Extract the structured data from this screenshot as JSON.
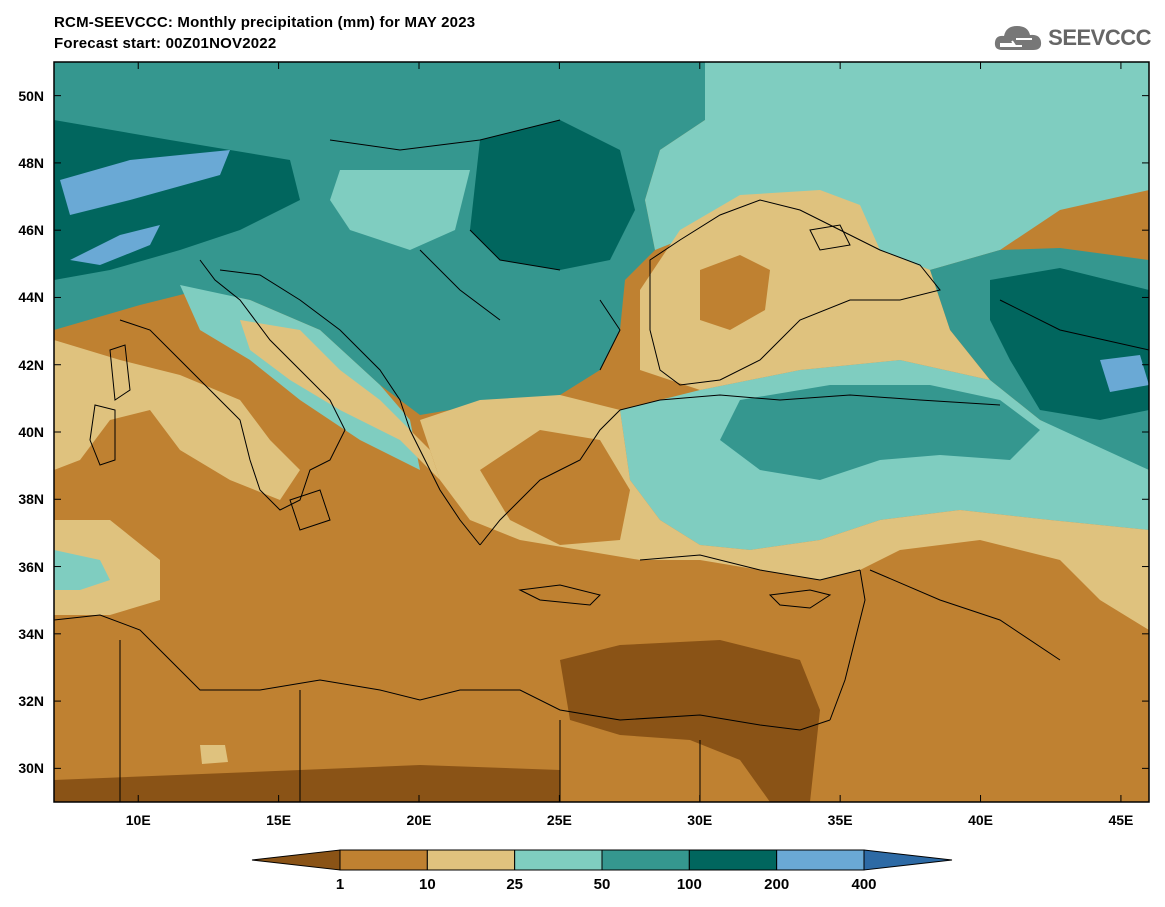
{
  "header": {
    "title": "RCM-SEEVCCC: Monthly precipitation (mm) for MAY 2023",
    "subtitle": "Forecast start: 00Z01NOV2022",
    "logo_text": "SEEVCCC"
  },
  "map": {
    "lat_labels": [
      "50N",
      "48N",
      "46N",
      "44N",
      "42N",
      "40N",
      "38N",
      "36N",
      "34N",
      "32N",
      "30N"
    ],
    "lon_labels": [
      "10E",
      "15E",
      "20E",
      "25E",
      "30E",
      "35E",
      "40E",
      "45E"
    ],
    "lat_range": [
      29,
      51
    ],
    "lon_range": [
      7,
      46
    ]
  },
  "colorbar": {
    "levels": [
      "1",
      "10",
      "25",
      "50",
      "100",
      "200",
      "400"
    ],
    "colors": [
      "#8a5316",
      "#bf8131",
      "#dfc27e",
      "#7fcdc0",
      "#35978f",
      "#01665e",
      "#6aa9d5",
      "#2d6aa5"
    ]
  }
}
